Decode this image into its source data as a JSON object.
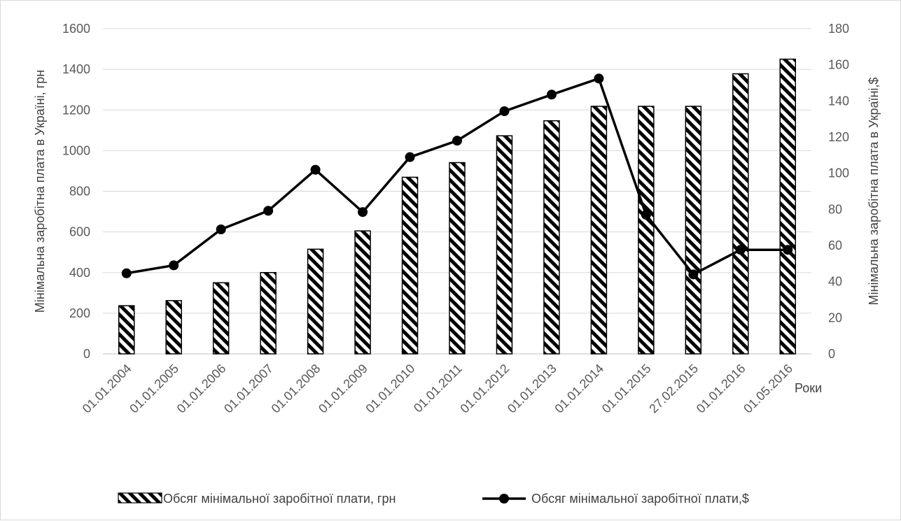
{
  "chart_data": {
    "type": "bar",
    "categories": [
      "01.01.2004",
      "01.01.2005",
      "01.01.2006",
      "01.01.2007",
      "01.01.2008",
      "01.01.2009",
      "01.01.2010",
      "01.01.2011",
      "01.01.2012",
      "01.01.2013",
      "01.01.2014",
      "01.01.2015",
      "27.02.2015",
      "01.01.2016",
      "01.05.2016"
    ],
    "series": [
      {
        "name": "Обсяг мінімальної заробітної плати, грн",
        "type": "bar",
        "axis": "left",
        "pattern": "diagonal-hatch",
        "values": [
          237,
          262,
          350,
          400,
          515,
          605,
          869,
          941,
          1073,
          1147,
          1218,
          1218,
          1218,
          1378,
          1450
        ]
      },
      {
        "name": "Обсяг мінімальної заробітної плати,$",
        "type": "line",
        "axis": "right",
        "marker": "circle",
        "values": [
          44.6,
          49,
          68.9,
          79.2,
          101.9,
          78.5,
          108.9,
          118,
          134.3,
          143.5,
          152.4,
          77,
          44,
          57.6,
          57.6
        ]
      }
    ],
    "ylabel": "Мінімальна заробітна плата в Україні, грн",
    "y2label": "Мінімальна заробітна плата в Україні,$",
    "xlabel": "Роки",
    "ylim": [
      0,
      1600
    ],
    "y2lim": [
      0,
      180
    ],
    "yticks": [
      0,
      200,
      400,
      600,
      800,
      1000,
      1200,
      1400,
      1600
    ],
    "y2ticks": [
      0,
      20,
      40,
      60,
      80,
      100,
      120,
      140,
      160,
      180
    ],
    "grid": true,
    "legend": "bottom",
    "colors": {
      "bar_fill": "#ffffff",
      "hatch": "#000000",
      "line": "#000000",
      "grid": "#d9d9d9",
      "text": "#595959"
    }
  }
}
